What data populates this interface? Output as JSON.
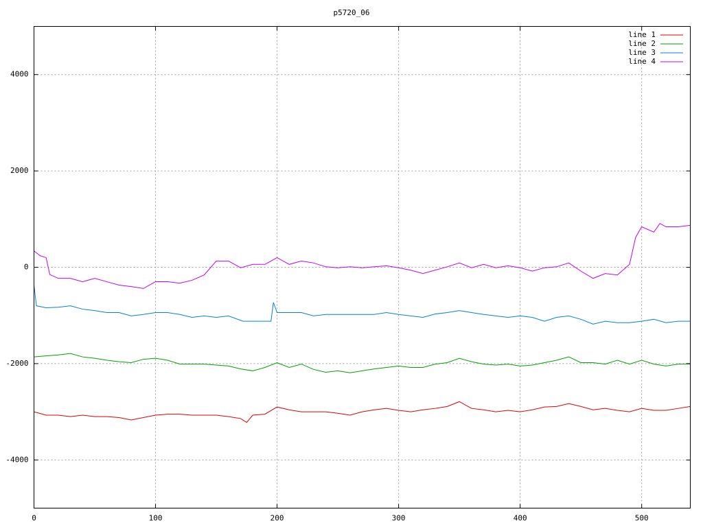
{
  "chart_data": {
    "type": "line",
    "title": "p5720_06",
    "xlim": [
      0,
      540
    ],
    "ylim": [
      -5000,
      5000
    ],
    "xticks": [
      0,
      100,
      200,
      300,
      400,
      500
    ],
    "yticks": [
      -4000,
      -2000,
      0,
      2000,
      4000
    ],
    "grid": true,
    "legend": "top-right",
    "series": [
      {
        "name": "line 1",
        "color": "#e00000",
        "x": [
          0,
          10,
          20,
          30,
          40,
          50,
          60,
          70,
          80,
          90,
          100,
          110,
          120,
          130,
          140,
          150,
          160,
          170,
          175,
          180,
          190,
          200,
          210,
          220,
          230,
          240,
          250,
          260,
          270,
          280,
          290,
          300,
          310,
          320,
          330,
          340,
          350,
          360,
          370,
          380,
          390,
          400,
          410,
          420,
          430,
          440,
          450,
          460,
          470,
          480,
          490,
          500,
          510,
          520,
          530,
          540
        ],
        "values": [
          -3000,
          -3070,
          -3070,
          -3100,
          -3070,
          -3100,
          -3100,
          -3120,
          -3170,
          -3120,
          -3070,
          -3050,
          -3050,
          -3070,
          -3070,
          -3070,
          -3100,
          -3140,
          -3220,
          -3070,
          -3050,
          -2900,
          -2960,
          -3000,
          -3000,
          -3000,
          -3030,
          -3070,
          -3000,
          -2960,
          -2930,
          -2970,
          -3000,
          -2960,
          -2930,
          -2890,
          -2790,
          -2930,
          -2960,
          -3000,
          -2970,
          -3000,
          -2960,
          -2900,
          -2890,
          -2830,
          -2890,
          -2960,
          -2930,
          -2970,
          -3000,
          -2930,
          -2970,
          -2970,
          -2930,
          -2890
        ]
      },
      {
        "name": "line 2",
        "color": "#00a000",
        "x": [
          0,
          10,
          20,
          30,
          40,
          50,
          60,
          70,
          80,
          90,
          100,
          110,
          120,
          130,
          140,
          150,
          160,
          170,
          180,
          190,
          200,
          210,
          220,
          230,
          240,
          250,
          260,
          270,
          280,
          290,
          300,
          310,
          320,
          330,
          340,
          350,
          360,
          370,
          380,
          390,
          400,
          410,
          420,
          430,
          440,
          450,
          460,
          470,
          480,
          490,
          500,
          510,
          520,
          530,
          540
        ],
        "values": [
          -1860,
          -1840,
          -1820,
          -1790,
          -1860,
          -1890,
          -1930,
          -1960,
          -1980,
          -1910,
          -1890,
          -1930,
          -2010,
          -2010,
          -2010,
          -2030,
          -2050,
          -2110,
          -2150,
          -2080,
          -1980,
          -2080,
          -2010,
          -2120,
          -2180,
          -2150,
          -2190,
          -2150,
          -2110,
          -2080,
          -2050,
          -2080,
          -2080,
          -2010,
          -1980,
          -1890,
          -1960,
          -2010,
          -2030,
          -2010,
          -2050,
          -2030,
          -1980,
          -1930,
          -1860,
          -1980,
          -1980,
          -2010,
          -1930,
          -2010,
          -1930,
          -2010,
          -2050,
          -2010,
          -2010
        ]
      },
      {
        "name": "line 3",
        "color": "#0080e0",
        "x": [
          0,
          2,
          10,
          20,
          30,
          40,
          50,
          60,
          70,
          80,
          90,
          100,
          110,
          120,
          130,
          140,
          150,
          160,
          172,
          180,
          195,
          197,
          200,
          210,
          220,
          230,
          240,
          250,
          260,
          270,
          280,
          290,
          300,
          310,
          320,
          330,
          340,
          350,
          360,
          370,
          380,
          390,
          400,
          410,
          420,
          430,
          440,
          450,
          460,
          470,
          480,
          490,
          500,
          510,
          520,
          530,
          540
        ],
        "values": [
          -370,
          -800,
          -840,
          -830,
          -800,
          -870,
          -900,
          -940,
          -940,
          -1010,
          -980,
          -940,
          -940,
          -980,
          -1040,
          -1010,
          -1040,
          -1010,
          -1120,
          -1120,
          -1120,
          -730,
          -940,
          -940,
          -940,
          -1010,
          -980,
          -980,
          -980,
          -980,
          -980,
          -940,
          -980,
          -1010,
          -1040,
          -970,
          -940,
          -900,
          -940,
          -980,
          -1010,
          -1040,
          -1010,
          -1040,
          -1120,
          -1040,
          -1010,
          -1080,
          -1180,
          -1120,
          -1150,
          -1150,
          -1120,
          -1080,
          -1150,
          -1120,
          -1120
        ]
      },
      {
        "name": "line 4",
        "color": "#c000ff",
        "x": [
          0,
          5,
          10,
          13,
          20,
          30,
          40,
          50,
          60,
          70,
          80,
          90,
          100,
          110,
          120,
          130,
          140,
          150,
          160,
          170,
          180,
          190,
          200,
          210,
          220,
          230,
          240,
          250,
          260,
          270,
          280,
          290,
          300,
          310,
          320,
          330,
          340,
          350,
          360,
          370,
          380,
          390,
          400,
          410,
          420,
          430,
          440,
          450,
          460,
          470,
          480,
          490,
          495,
          500,
          510,
          515,
          520,
          530,
          540
        ],
        "values": [
          340,
          240,
          200,
          -150,
          -230,
          -230,
          -300,
          -230,
          -300,
          -370,
          -400,
          -440,
          -300,
          -300,
          -330,
          -270,
          -160,
          130,
          130,
          -10,
          60,
          60,
          200,
          60,
          130,
          90,
          10,
          -10,
          10,
          -10,
          10,
          30,
          -10,
          -60,
          -130,
          -60,
          10,
          90,
          -10,
          60,
          -10,
          30,
          -10,
          -80,
          -10,
          10,
          90,
          -80,
          -230,
          -130,
          -160,
          60,
          620,
          840,
          730,
          910,
          840,
          840,
          870
        ]
      }
    ]
  }
}
